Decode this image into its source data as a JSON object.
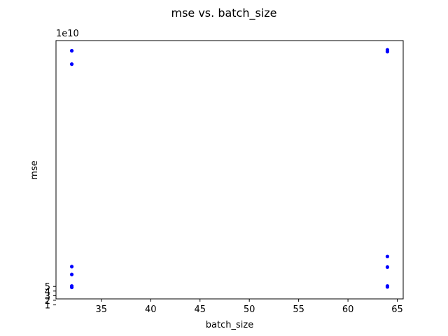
{
  "chart_data": {
    "type": "scatter",
    "title": "mse vs. batch_size",
    "xlabel": "batch_size",
    "ylabel": "mse",
    "y_offset_label": "1e10",
    "y_scale": 10000000000,
    "xlim": [
      30.4,
      65.6
    ],
    "ylim": [
      2.3,
      58.3
    ],
    "x_ticks": [
      35,
      40,
      45,
      50,
      55,
      60,
      65
    ],
    "x_tick_labels": [
      "35",
      "40",
      "45",
      "50",
      "55",
      "60",
      "65"
    ],
    "y_ticks": [
      1,
      2,
      3,
      4,
      5
    ],
    "y_tick_labels": [
      "1",
      "2",
      "3",
      "4",
      "5"
    ],
    "marker_color": "#0000ff",
    "grid": false,
    "points": [
      {
        "x": 32,
        "y": 56.1
      },
      {
        "x": 32,
        "y": 53.2
      },
      {
        "x": 32,
        "y": 9.3
      },
      {
        "x": 32,
        "y": 7.6
      },
      {
        "x": 32,
        "y": 5.1
      },
      {
        "x": 32,
        "y": 4.8
      },
      {
        "x": 64,
        "y": 56.3
      },
      {
        "x": 64,
        "y": 55.9
      },
      {
        "x": 64,
        "y": 11.5
      },
      {
        "x": 64,
        "y": 9.2
      },
      {
        "x": 64,
        "y": 5.1
      },
      {
        "x": 64,
        "y": 4.9
      }
    ]
  }
}
